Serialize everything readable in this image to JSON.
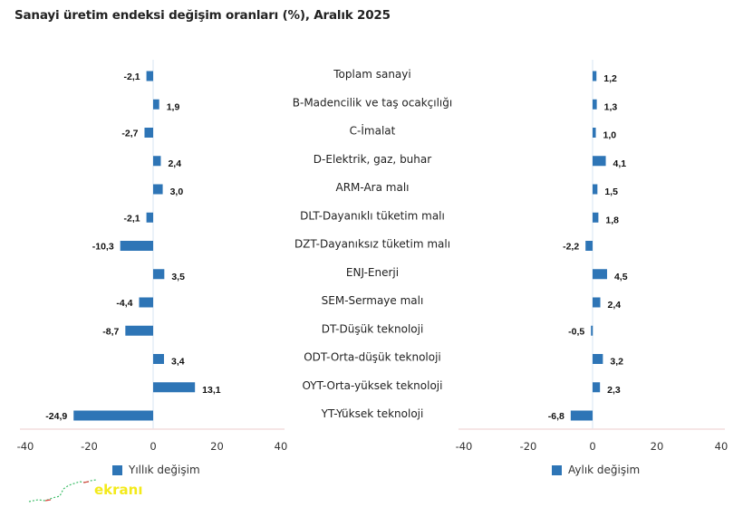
{
  "title": "Sanayi üretim endeksi değişim oranları (%), Aralık 2025",
  "colors": {
    "bar": "#2e75b6",
    "gridline": "#d7e6f3",
    "axis": "#f3dede"
  },
  "chart_data": {
    "type": "bar",
    "orientation": "horizontal",
    "title": "Sanayi üretim endeksi değişim oranları (%), Aralık 2025",
    "categories": [
      "Toplam sanayi",
      "B-Madencilik ve taş ocakçılığı",
      "C-İmalat",
      "D-Elektrik, gaz, buhar",
      "ARM-Ara malı",
      "DLT-Dayanıklı tüketim malı",
      "DZT-Dayanıksız tüketim malı",
      "ENJ-Enerji",
      "SEM-Sermaye malı",
      "DT-Düşük teknoloji",
      "ODT-Orta-düşük teknoloji",
      "OYT-Orta-yüksek teknoloji",
      "YT-Yüksek teknoloji"
    ],
    "series": [
      {
        "name": "Yıllık değişim",
        "values": [
          -2.1,
          1.9,
          -2.7,
          2.4,
          3.0,
          -2.1,
          -10.3,
          3.5,
          -4.4,
          -8.7,
          3.4,
          13.1,
          -24.9
        ],
        "labels": [
          "-2,1",
          "1,9",
          "-2,7",
          "2,4",
          "3,0",
          "-2,1",
          "-10,3",
          "3,5",
          "-4,4",
          "-8,7",
          "3,4",
          "13,1",
          "-24,9"
        ],
        "xlim": [
          -40,
          40
        ],
        "ticks": [
          "-40",
          "-20",
          "0",
          "20",
          "40"
        ],
        "tick_values": [
          -40,
          -20,
          0,
          20,
          40
        ],
        "legend": "bottom"
      },
      {
        "name": "Aylık değişim",
        "values": [
          1.2,
          1.3,
          1.0,
          4.1,
          1.5,
          1.8,
          -2.2,
          4.5,
          2.4,
          -0.5,
          3.2,
          2.3,
          -6.8
        ],
        "labels": [
          "1,2",
          "1,3",
          "1,0",
          "4,1",
          "1,5",
          "1,8",
          "-2,2",
          "4,5",
          "2,4",
          "-0,5",
          "3,2",
          "2,3",
          "-6,8"
        ],
        "xlim": [
          -40,
          40
        ],
        "ticks": [
          "-40",
          "-20",
          "0",
          "20",
          "40"
        ],
        "tick_values": [
          -40,
          -20,
          0,
          20,
          40
        ],
        "legend": "bottom"
      }
    ],
    "xlabel": "",
    "ylabel": "",
    "grid": false
  },
  "watermark": {
    "text": "ekranı"
  }
}
